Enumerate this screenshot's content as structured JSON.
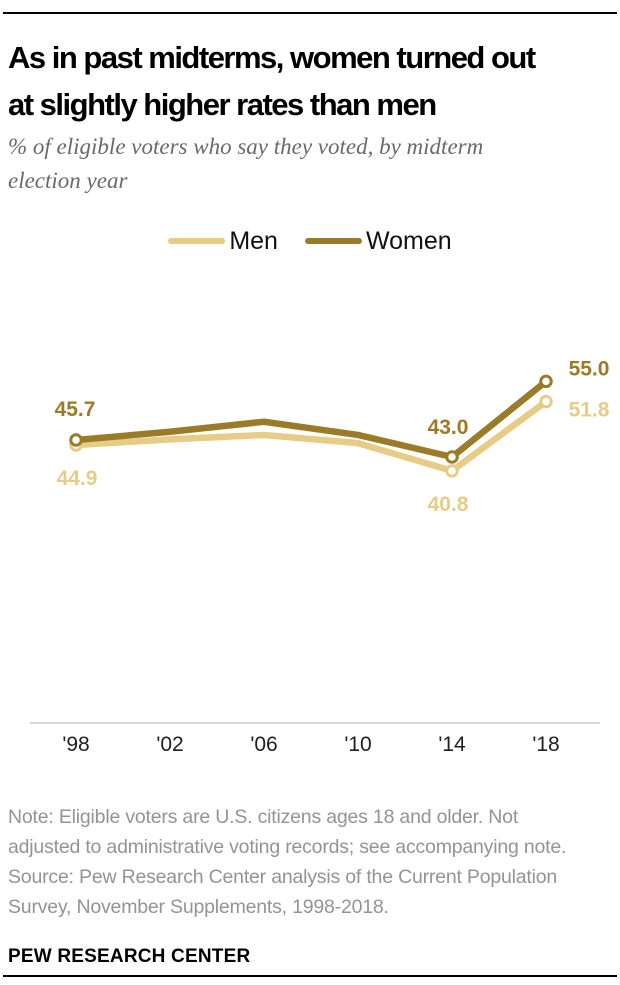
{
  "header": {
    "title_line1": "As in past midterms, women turned out",
    "title_line2": "at slightly higher rates than men",
    "subtitle_line1": "% of eligible voters who say they voted, by midterm",
    "subtitle_line2": "election year"
  },
  "chart_data": {
    "type": "line",
    "title": "As in past midterms, women turned out at slightly higher rates than men",
    "ylabel": "% of eligible voters who say they voted",
    "xlabel": "midterm election year",
    "categories": [
      "'98",
      "'02",
      "'06",
      "'10",
      "'14",
      "'18"
    ],
    "x_years": [
      1998,
      2002,
      2006,
      2010,
      2014,
      2018
    ],
    "series": [
      {
        "name": "Men",
        "color": "#E7CC87",
        "values": [
          44.9,
          45.8,
          46.5,
          45.2,
          40.8,
          51.8
        ],
        "values_estimated": [
          false,
          true,
          true,
          true,
          false,
          false
        ]
      },
      {
        "name": "Women",
        "color": "#9A7B28",
        "values": [
          45.7,
          47.0,
          48.6,
          46.5,
          43.0,
          55.0
        ],
        "values_estimated": [
          false,
          true,
          true,
          true,
          false,
          false
        ]
      }
    ],
    "point_labels": [
      {
        "series": "Women",
        "index": 0,
        "text": "45.7"
      },
      {
        "series": "Men",
        "index": 0,
        "text": "44.9"
      },
      {
        "series": "Women",
        "index": 4,
        "text": "43.0"
      },
      {
        "series": "Men",
        "index": 4,
        "text": "40.8"
      },
      {
        "series": "Women",
        "index": 5,
        "text": "55.0"
      },
      {
        "series": "Men",
        "index": 5,
        "text": "51.8"
      }
    ],
    "marker_indices": [
      0,
      4,
      5
    ],
    "ylim": [
      38,
      58
    ],
    "grid": false,
    "legend_position": "top-center",
    "axis_line_color": "#cccccc",
    "tick_label_color": "#1f1f1f"
  },
  "notes": {
    "line1": "Note: Eligible voters are U.S. citizens ages 18 and older. Not",
    "line2": "adjusted to administrative voting records; see accompanying note.",
    "line3": "Source: Pew Research Center analysis of the Current Population",
    "line4": "Survey, November Supplements, 1998-2018."
  },
  "footer": {
    "brand": "PEW RESEARCH CENTER"
  }
}
